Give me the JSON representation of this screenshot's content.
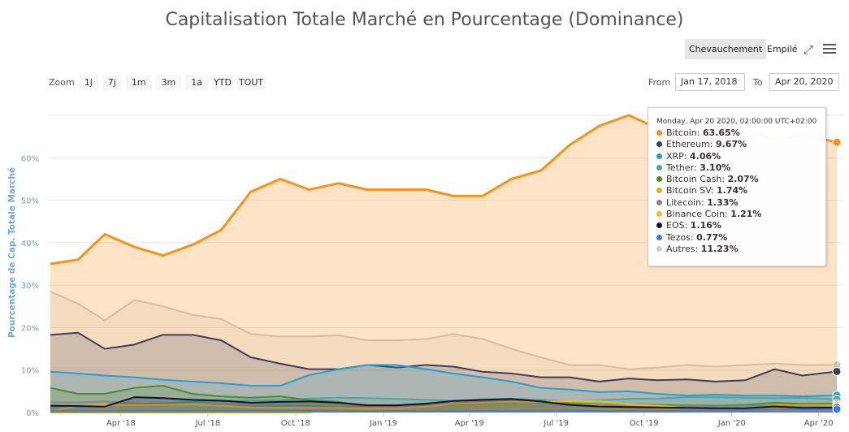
{
  "title": "Capitalisation Totale Marché en Pourcentage (Dominance)",
  "modes": {
    "overlap": "Chevauchement",
    "stacked": "Empilé",
    "active": "overlap"
  },
  "zoom": {
    "label": "Zoom",
    "buttons": [
      "1j",
      "7j",
      "1m",
      "3m",
      "1a",
      "YTD",
      "TOUT"
    ]
  },
  "range": {
    "from_label": "From",
    "from": "Jan 17, 2018",
    "to_label": "To",
    "to": "Apr 20, 2020"
  },
  "tooltip": {
    "header": "Monday, Apr 20 2020, 02:00:00 UTC+02:00",
    "rows": [
      {
        "name": "Bitcoin",
        "value": "63.65%"
      },
      {
        "name": "Ethereum",
        "value": "9.67%"
      },
      {
        "name": "XRP",
        "value": "4.06%"
      },
      {
        "name": "Tether",
        "value": "3.10%"
      },
      {
        "name": "Bitcoin Cash",
        "value": "2.07%"
      },
      {
        "name": "Bitcoin SV",
        "value": "1.74%"
      },
      {
        "name": "Litecoin",
        "value": "1.33%"
      },
      {
        "name": "Binance Coin",
        "value": "1.21%"
      },
      {
        "name": "EOS",
        "value": "1.16%"
      },
      {
        "name": "Tezos",
        "value": "0.77%"
      },
      {
        "name": "Autres",
        "value": "11.23%"
      }
    ]
  },
  "chart_data": {
    "type": "area",
    "ylabel": "Pourcentage de Cap. Totale Marché",
    "ylim": [
      0,
      70
    ],
    "yticks": [
      "0%",
      "10%",
      "20%",
      "30%",
      "40%",
      "50%",
      "60%"
    ],
    "xlim": [
      "2018-01-17",
      "2020-04-20"
    ],
    "xticks": [
      {
        "date": "2018-04-01",
        "label": "Apr '18"
      },
      {
        "date": "2018-07-01",
        "label": "Jul '18"
      },
      {
        "date": "2018-10-01",
        "label": "Oct '18"
      },
      {
        "date": "2019-01-01",
        "label": "Jan '19"
      },
      {
        "date": "2019-04-01",
        "label": "Apr '19"
      },
      {
        "date": "2019-07-01",
        "label": "Jul '19"
      },
      {
        "date": "2019-10-01",
        "label": "Oct '19"
      },
      {
        "date": "2020-01-01",
        "label": "Jan '20"
      },
      {
        "date": "2020-04-01",
        "label": "Apr '20"
      }
    ],
    "grid": true,
    "legend": "none",
    "x": [
      "2018-01-17",
      "2018-02-15",
      "2018-03-15",
      "2018-04-15",
      "2018-05-15",
      "2018-06-15",
      "2018-07-15",
      "2018-08-15",
      "2018-09-15",
      "2018-10-15",
      "2018-11-15",
      "2018-12-15",
      "2019-01-15",
      "2019-02-15",
      "2019-03-15",
      "2019-04-15",
      "2019-05-15",
      "2019-06-15",
      "2019-07-15",
      "2019-08-15",
      "2019-09-15",
      "2019-10-15",
      "2019-11-15",
      "2019-12-15",
      "2020-01-15",
      "2020-02-15",
      "2020-03-15",
      "2020-04-20"
    ],
    "series": [
      {
        "name": "Autres",
        "color": "#cccccc",
        "values": [
          28.5,
          25.6,
          21.7,
          26.5,
          25,
          23,
          22,
          18.5,
          17.9,
          17.9,
          18.2,
          17,
          17,
          17.3,
          18.5,
          17.3,
          15,
          13,
          11.2,
          11.2,
          10.2,
          10.6,
          11.2,
          10.8,
          11.2,
          11.5,
          11.2,
          11.23
        ]
      },
      {
        "name": "Bitcoin",
        "color": "#f7931a",
        "values": [
          35,
          36,
          42,
          39,
          37,
          39.5,
          43,
          52,
          55,
          52.5,
          54,
          52.5,
          52.5,
          52.5,
          51,
          51,
          55,
          57,
          63,
          67.5,
          70,
          67,
          66,
          67,
          67,
          64,
          65.5,
          63.65
        ]
      },
      {
        "name": "Ethereum",
        "color": "#3c3c5d",
        "values": [
          18.3,
          18.8,
          15,
          16,
          18.3,
          18.3,
          17,
          13,
          11.5,
          10.2,
          10.2,
          11.2,
          10.6,
          11.2,
          10.8,
          9.6,
          9.2,
          8.3,
          8.3,
          7.3,
          8,
          7.6,
          7.8,
          7.3,
          7.6,
          10.2,
          8.7,
          9.67
        ]
      },
      {
        "name": "XRP",
        "color": "#23a0d0",
        "values": [
          9.6,
          9.2,
          8.7,
          8.3,
          7.7,
          7.3,
          6.9,
          6.3,
          6.3,
          8.8,
          10.2,
          11.2,
          11.2,
          10.2,
          9.2,
          8.3,
          7.3,
          5.8,
          5.4,
          4.8,
          5,
          4.4,
          4,
          4.2,
          4,
          4,
          3.8,
          4.06
        ]
      },
      {
        "name": "Tether",
        "color": "#4fa5a0",
        "values": [
          1.5,
          1.6,
          1.8,
          2,
          2.2,
          2.5,
          2.7,
          2.8,
          2.9,
          3.3,
          3.5,
          3.4,
          3.2,
          3,
          2.8,
          3.1,
          3.2,
          3,
          2.6,
          2.9,
          3.2,
          3.3,
          3.6,
          3.6,
          3.5,
          3.4,
          3.5,
          3.1
        ]
      },
      {
        "name": "Bitcoin Cash",
        "color": "#4c8c2b",
        "values": [
          5.8,
          4.4,
          4.4,
          5.8,
          6.3,
          4.4,
          3.8,
          3.5,
          3.8,
          2.9,
          2.5,
          1.5,
          1.6,
          1.7,
          1.8,
          2.2,
          2.4,
          2.6,
          2.2,
          2,
          1.9,
          1.8,
          1.7,
          1.6,
          1.8,
          2.3,
          2,
          2.07
        ]
      },
      {
        "name": "Bitcoin SV",
        "color": "#e0b020",
        "values": [
          0,
          0,
          0,
          0,
          0,
          0,
          0,
          0,
          0,
          0,
          0.8,
          0.7,
          0.6,
          0.6,
          0.5,
          0.6,
          0.8,
          0.9,
          0.8,
          0.7,
          0.7,
          0.6,
          0.5,
          0.6,
          1,
          1.8,
          1.7,
          1.74
        ]
      },
      {
        "name": "Litecoin",
        "color": "#888888",
        "values": [
          2.4,
          2.4,
          2.6,
          2.2,
          2,
          1.8,
          1.8,
          1.6,
          1.6,
          1.6,
          1.3,
          1.5,
          1.4,
          1.6,
          2.1,
          2.7,
          2.8,
          2.3,
          1.8,
          1.9,
          1.5,
          1.6,
          1.5,
          1.4,
          1.5,
          1.6,
          1.4,
          1.33
        ]
      },
      {
        "name": "Binance Coin",
        "color": "#f3ba2f",
        "values": [
          0.3,
          1.5,
          1.8,
          1.8,
          1.8,
          1.9,
          1.6,
          1.2,
          1.1,
          1.1,
          1.1,
          1,
          1,
          1.4,
          2,
          2.3,
          2.5,
          2.5,
          2.7,
          2.7,
          1.9,
          1.6,
          1,
          1,
          1.1,
          1.1,
          1.1,
          1.21
        ]
      },
      {
        "name": "EOS",
        "color": "#101030",
        "values": [
          1.6,
          1.5,
          1.4,
          3.6,
          3.4,
          3,
          2.8,
          2.3,
          2.5,
          2.6,
          2.3,
          1.7,
          1.7,
          2.1,
          2.7,
          3,
          3.2,
          2.6,
          1.8,
          1.4,
          1.3,
          1.2,
          1.1,
          1,
          1,
          1.4,
          1.1,
          1.16
        ]
      },
      {
        "name": "Tezos",
        "color": "#3b7de0",
        "values": [
          0.3,
          0.3,
          0.3,
          0.4,
          0.4,
          0.4,
          0.4,
          0.4,
          0.4,
          0.4,
          0.4,
          0.3,
          0.4,
          0.4,
          0.4,
          0.4,
          0.4,
          0.5,
          0.5,
          0.4,
          0.4,
          0.4,
          0.4,
          0.5,
          0.5,
          0.8,
          0.7,
          0.77
        ]
      }
    ]
  }
}
